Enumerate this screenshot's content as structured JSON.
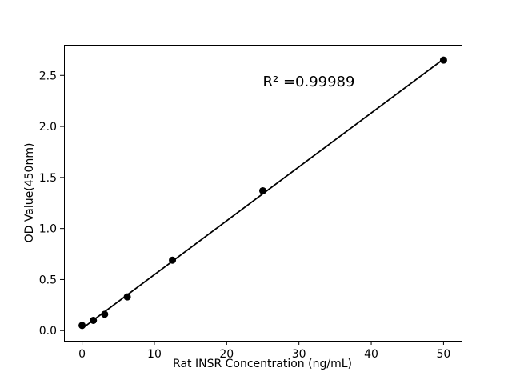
{
  "chart_data": {
    "type": "scatter",
    "title": "",
    "xlabel": "Rat INSR Concentration (ng/mL)",
    "ylabel": "OD Value(450nm)",
    "series": [
      {
        "name": "standard-points",
        "points": [
          {
            "x": 0,
            "y": 0.05
          },
          {
            "x": 1.5625,
            "y": 0.1
          },
          {
            "x": 3.125,
            "y": 0.16
          },
          {
            "x": 6.25,
            "y": 0.33
          },
          {
            "x": 12.5,
            "y": 0.69
          },
          {
            "x": 25,
            "y": 1.37
          },
          {
            "x": 50,
            "y": 2.65
          }
        ]
      }
    ],
    "fit_line": {
      "x1": 0,
      "y1": 0.02,
      "x2": 50,
      "y2": 2.66
    },
    "annotation": {
      "text": "R² =0.99989",
      "x": 25,
      "y": 2.43
    },
    "x_ticks": [
      {
        "v": 0,
        "label": "0"
      },
      {
        "v": 10,
        "label": "10"
      },
      {
        "v": 20,
        "label": "20"
      },
      {
        "v": 30,
        "label": "30"
      },
      {
        "v": 40,
        "label": "40"
      },
      {
        "v": 50,
        "label": "50"
      }
    ],
    "y_ticks": [
      {
        "v": 0.0,
        "label": "0.0"
      },
      {
        "v": 0.5,
        "label": "0.5"
      },
      {
        "v": 1.0,
        "label": "1.0"
      },
      {
        "v": 1.5,
        "label": "1.5"
      },
      {
        "v": 2.0,
        "label": "2.0"
      },
      {
        "v": 2.5,
        "label": "2.5"
      }
    ],
    "xlim": [
      -2.5,
      52.5
    ],
    "ylim": [
      -0.1,
      2.8
    ],
    "grid": false,
    "legend": null,
    "colors": {
      "marker": "#000000",
      "line": "#000000",
      "spine": "#000000",
      "background": "#ffffff"
    }
  }
}
